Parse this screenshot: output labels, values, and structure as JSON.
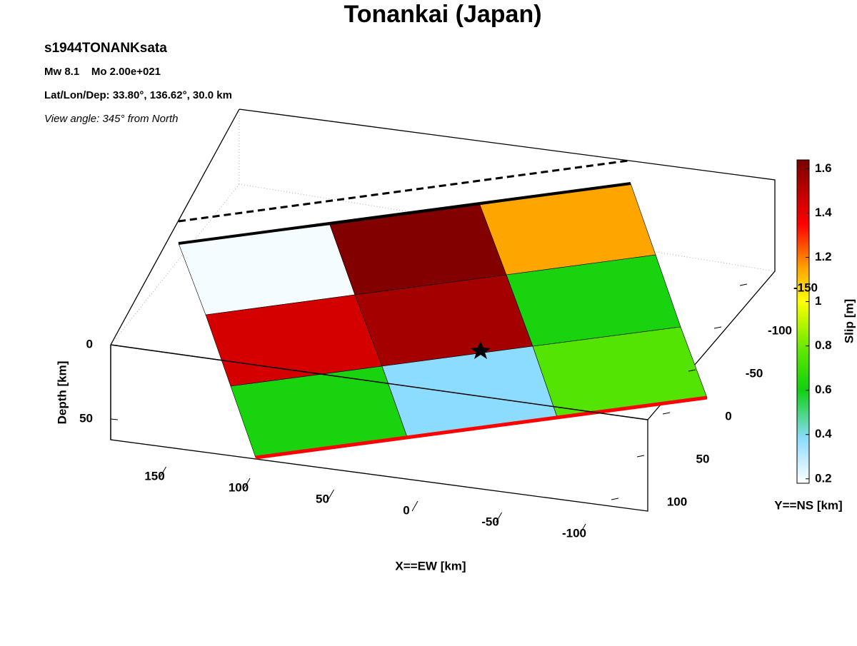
{
  "chart_data": {
    "type": "heatmap",
    "title": "Tonankai (Japan)",
    "event": "s1944TONANKsata",
    "magnitude": "Mw 8.1    Mo 2.00e+021",
    "location": "Lat/Lon/Dep: 33.80°, 136.62°, 30.0 km",
    "view": "View angle: 345° from North",
    "x_label": "X==EW [km]",
    "y_label": "Y==NS [km]",
    "z_label": "Depth [km]",
    "colorbar_label": "Slip [m]",
    "xticks": [
      150,
      100,
      50,
      0,
      -50,
      -100
    ],
    "yticks": [
      -150,
      -100,
      -50,
      0,
      50,
      100
    ],
    "zticks": [
      0,
      50
    ],
    "values": [
      [
        0.2,
        1.62,
        1.15
      ],
      [
        1.45,
        1.55,
        0.62
      ],
      [
        0.62,
        0.38,
        0.75
      ]
    ],
    "clim": [
      0.18,
      1.64
    ],
    "cticks": [
      0.2,
      0.4,
      0.6,
      0.8,
      1,
      1.2,
      1.4,
      1.6
    ]
  }
}
